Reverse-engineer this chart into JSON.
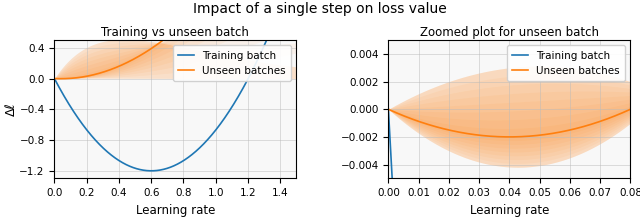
{
  "title": "Impact of a single step on loss value",
  "left_title": "Training vs unseen batch",
  "right_title": "Zoomed plot for unseen batch",
  "xlabel": "Learning rate",
  "ylabel": "Δℓ",
  "legend_training": "Training batch",
  "legend_unseen": "Unseen batches",
  "color_training": "#1f77b4",
  "color_unseen": "#ff7f0e",
  "left_xlim": [
    0.0,
    1.5
  ],
  "left_ylim": [
    -1.3,
    0.5
  ],
  "right_xlim": [
    0.0,
    0.08
  ],
  "right_ylim": [
    -0.005,
    0.005
  ],
  "left_xticks": [
    0.0,
    0.2,
    0.4,
    0.6,
    0.8,
    1.0,
    1.2,
    1.4
  ],
  "left_yticks": [
    -1.2,
    -0.8,
    -0.4,
    0.0,
    0.4
  ],
  "right_xticks": [
    0.0,
    0.01,
    0.02,
    0.03,
    0.04,
    0.05,
    0.06,
    0.07,
    0.08
  ],
  "right_yticks": [
    -0.004,
    -0.002,
    0.0,
    0.002,
    0.004
  ],
  "train_a": 4.0,
  "train_b": 3.33,
  "unseen_mean_alpha": -0.055,
  "unseen_mean_beta": 0.6875,
  "unseen_upper_c1": 0.055,
  "unseen_upper_c2": -0.375,
  "unseen_lower_c1": -0.16,
  "unseen_lower_c2": 1.625,
  "fan_upper_A": 3.2,
  "fan_upper_B": 2.3,
  "fan_lower_A": 0.05,
  "fan_lower_B": 4.0,
  "fig_bg": "#f0f0f0",
  "axes_bg": "#f8f8f8"
}
